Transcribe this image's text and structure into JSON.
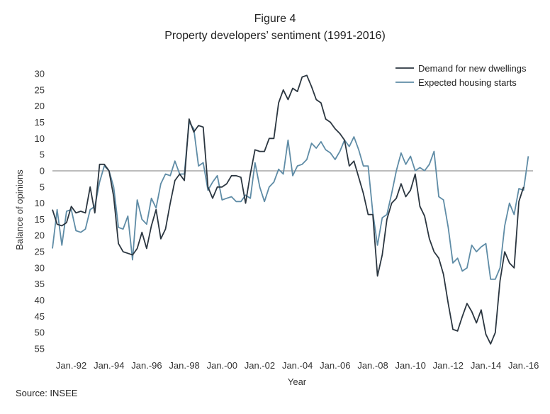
{
  "figure": {
    "label": "Figure 4",
    "title": "Property developers’ sentiment (1991-2016)",
    "source": "Source: INSEE"
  },
  "chart_data": {
    "type": "line",
    "xlabel": "Year",
    "ylabel": "Balance of opinions",
    "x_tick_labels": [
      "Jan.-92",
      "Jan.-94",
      "Jan.-96",
      "Jan.-98",
      "Jan.-00",
      "Jan.-02",
      "Jan.-04",
      "Jan.-06",
      "Jan.-08",
      "Jan.-10",
      "Jan.-12",
      "Jan.-14",
      "Jan.-16"
    ],
    "x_tick_quarters": [
      4,
      12,
      20,
      28,
      36,
      44,
      52,
      60,
      68,
      76,
      84,
      92,
      100
    ],
    "y_ticks": [
      30,
      25,
      20,
      15,
      10,
      5,
      0,
      -5,
      -10,
      -15,
      -20,
      -25,
      -30,
      -35,
      -40,
      -45,
      -50,
      -55
    ],
    "y_tick_labels": [
      "30",
      "25",
      "20",
      "15",
      "10",
      "5",
      "0",
      "5",
      "10",
      "15",
      "20",
      "25",
      "30",
      "35",
      "40",
      "45",
      "50",
      "55"
    ],
    "ylim": [
      -55,
      30
    ],
    "x_range_quarters": [
      0,
      102
    ],
    "grid": false,
    "zero_line": true,
    "legend_position": "top-right",
    "series": [
      {
        "name": "Demand for new dwellings",
        "color": "#2b3640",
        "values": [
          -12,
          -16.5,
          -17,
          -16,
          -11,
          -13,
          -12.5,
          -13,
          -5,
          -13,
          2,
          2,
          0,
          -8,
          -22.5,
          -25,
          -25.5,
          -26,
          -24,
          -19,
          -24,
          -17,
          -12,
          -21,
          -18,
          -10,
          -3,
          -1,
          -3,
          16,
          12,
          14,
          13.5,
          -5,
          -8.5,
          -5,
          -5,
          -4,
          -1.5,
          -1.5,
          -2,
          -10,
          -1,
          6.5,
          6,
          6,
          10,
          10,
          21,
          25,
          22,
          25.5,
          24.5,
          29,
          29.5,
          26,
          22,
          21,
          16,
          15,
          13,
          11.5,
          9.5,
          1.5,
          3,
          -2,
          -7,
          -13.5,
          -13.5,
          -32.5,
          -26,
          -15,
          -10,
          -8.5,
          -4,
          -8,
          -6,
          -1,
          -11,
          -14,
          -21,
          -25,
          -27,
          -32,
          -41,
          -49,
          -49.5,
          -45,
          -41,
          -43.5,
          -47,
          -43,
          -50.5,
          -53.5,
          -50,
          -34,
          -25,
          -28.5,
          -30,
          -9.5,
          -5
        ]
      },
      {
        "name": "Expected housing starts",
        "color": "#5f8ca6",
        "values": [
          -24,
          -12,
          -23,
          -12.5,
          -12,
          -18.5,
          -19,
          -18,
          -12,
          -11,
          -3.5,
          1.5,
          0,
          -5,
          -17.5,
          -18,
          -14,
          -27.5,
          -9,
          -15,
          -16.5,
          -8.5,
          -11.5,
          -4,
          -1,
          -1.5,
          3,
          -1,
          -1,
          15,
          13,
          1.5,
          2.5,
          -6,
          -3.5,
          -1.5,
          -9,
          -8.5,
          -8,
          -9.5,
          -9.5,
          -7.5,
          -8.5,
          2.5,
          -5,
          -9.5,
          -5,
          -3.5,
          0.5,
          -1,
          9.5,
          -1.5,
          1.5,
          2,
          3.5,
          8.5,
          7,
          9,
          6.5,
          5.5,
          3.5,
          6,
          9.5,
          7.5,
          10.5,
          6.5,
          1.5,
          1.5,
          -13,
          -23,
          -14.5,
          -13.5,
          -7,
          0,
          5.5,
          2,
          4.5,
          0,
          1,
          0,
          2,
          6,
          -8,
          -9,
          -17.5,
          -28.5,
          -27,
          -31,
          -30,
          -23,
          -25,
          -23.5,
          -22.5,
          -33.5,
          -33.5,
          -30,
          -17,
          -10,
          -13.5,
          -5.5,
          -6,
          4.5
        ]
      }
    ]
  }
}
